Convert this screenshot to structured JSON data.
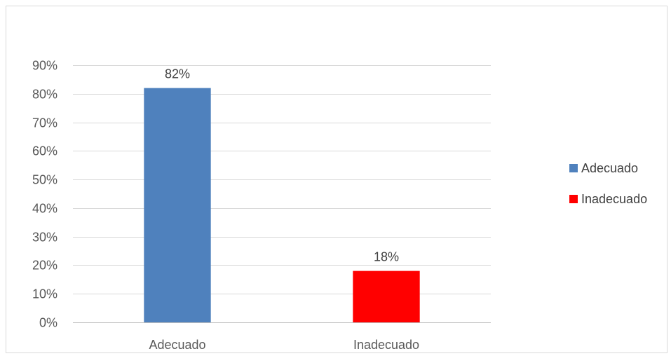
{
  "chart_data": {
    "type": "bar",
    "title": "",
    "xlabel": "",
    "ylabel": "",
    "categories": [
      "Adecuado",
      "Inadecuado"
    ],
    "values": [
      82,
      18
    ],
    "data_labels": [
      "82%",
      "18%"
    ],
    "colors": [
      "#4f81bd",
      "#ff0000"
    ],
    "ylim": [
      0,
      90
    ],
    "ytick_step": 10,
    "ytick_format": "percent",
    "grid": true,
    "legend": {
      "position": "right",
      "entries": [
        {
          "label": "Adecuado",
          "color": "#4f81bd"
        },
        {
          "label": "Inadecuado",
          "color": "#ff0000"
        }
      ]
    }
  }
}
